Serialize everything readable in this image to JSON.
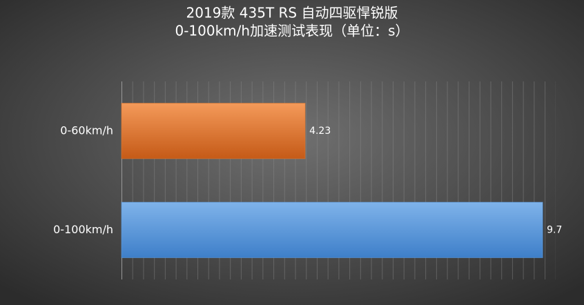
{
  "chart_data": {
    "type": "bar",
    "orientation": "horizontal",
    "title": "2019款 435T RS 自动四驱悍锐版",
    "subtitle": "0-100km/h加速测试表现（单位：s）",
    "categories": [
      "0-60km/h",
      "0-100km/h"
    ],
    "values": [
      4.23,
      9.7
    ],
    "colors": [
      "#e07a30",
      "#5b9bdf"
    ],
    "xlim": [
      0,
      10
    ]
  }
}
